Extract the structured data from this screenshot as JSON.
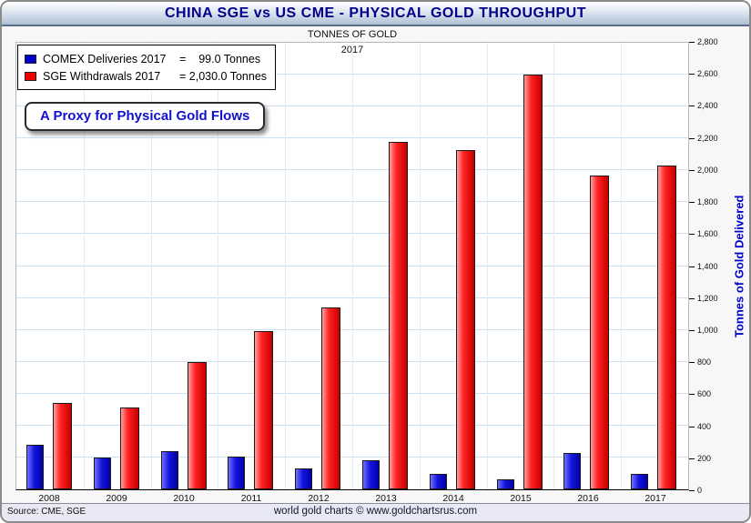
{
  "title": "CHINA SGE vs US CME - PHYSICAL GOLD THROUGHPUT",
  "subtitle_top": "TONNES OF GOLD",
  "subtitle_year": "2017",
  "legend": {
    "items": [
      {
        "label": "COMEX Deliveries 2017",
        "value_text": "=    99.0 Tonnes",
        "color": "#0000cc"
      },
      {
        "label": "SGE Withdrawals 2017",
        "value_text": "= 2,030.0 Tonnes",
        "color": "#ee0000"
      }
    ]
  },
  "callout_text": "A Proxy for Physical Gold Flows",
  "yaxis_label": "Tonnes of Gold Delivered",
  "footer": {
    "source": "Source: CME, SGE",
    "credit": "world gold charts © www.goldchartsrus.com"
  },
  "chart_data": {
    "type": "bar",
    "title": "CHINA SGE vs US CME - PHYSICAL GOLD THROUGHPUT",
    "subtitle": "TONNES OF GOLD 2017",
    "categories": [
      "2008",
      "2009",
      "2010",
      "2011",
      "2012",
      "2013",
      "2014",
      "2015",
      "2016",
      "2017"
    ],
    "series": [
      {
        "name": "COMEX Deliveries 2017",
        "color": "#0000cc",
        "values": [
          280,
          200,
          240,
          205,
          130,
          185,
          95,
          60,
          230,
          99
        ]
      },
      {
        "name": "SGE Withdrawals 2017",
        "color": "#ee0000",
        "values": [
          540,
          515,
          800,
          990,
          1140,
          2180,
          2130,
          2600,
          1970,
          2030
        ]
      }
    ],
    "xlabel": "",
    "ylabel": "Tonnes of Gold Delivered",
    "ylim": [
      0,
      2800
    ],
    "ytick_step": 200,
    "grid": true,
    "legend_position": "top-left"
  }
}
